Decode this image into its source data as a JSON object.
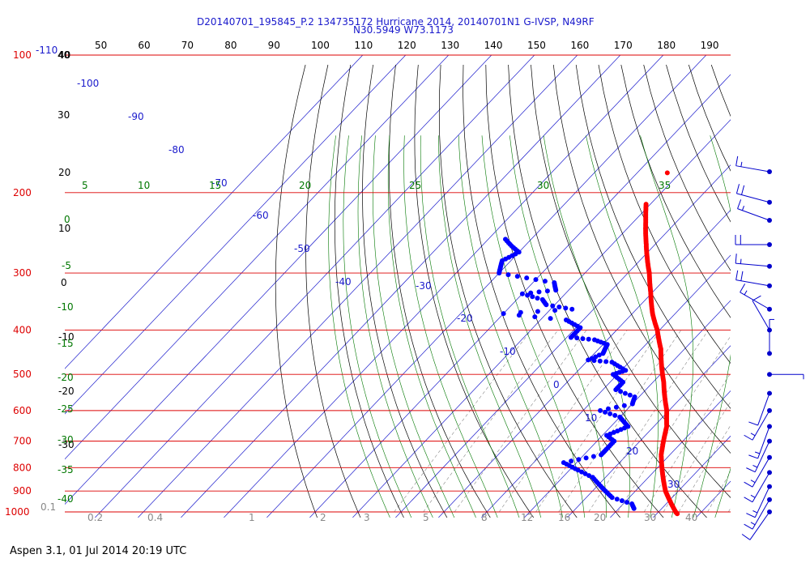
{
  "header": {
    "line1": "D20140701_195845_P.2 134735172 Hurricane 2014, 20140701N1 G-IVSP, N49RF",
    "line2": "N30.5949 W73.1173"
  },
  "footer": {
    "text": "Aspen 3.1, 01 Jul 2014  20:19 UTC"
  },
  "colors": {
    "isobar": "#dd0000",
    "isotherm": "#1a1acc",
    "dry_adiabat": "#000000",
    "moist_adiabat": "#007700",
    "mixing_ratio": "#888888",
    "temperature_trace": "#ff0000",
    "dewpoint_trace": "#0000ff",
    "wind_barb": "#0000cc"
  },
  "chart_data": {
    "type": "skew-t",
    "top_axis_ticks": [
      "40",
      "50",
      "60",
      "70",
      "80",
      "90",
      "100",
      "110",
      "120",
      "130",
      "140",
      "150",
      "160",
      "170",
      "180",
      "190"
    ],
    "pressure_levels": [
      {
        "p": 100,
        "label": "100"
      },
      {
        "p": 200,
        "label": "200"
      },
      {
        "p": 300,
        "label": "300"
      },
      {
        "p": 400,
        "label": "400"
      },
      {
        "p": 500,
        "label": "500"
      },
      {
        "p": 600,
        "label": "600"
      },
      {
        "p": 700,
        "label": "700"
      },
      {
        "p": 800,
        "label": "800"
      },
      {
        "p": 900,
        "label": "900"
      },
      {
        "p": 1000,
        "label": "1000"
      }
    ],
    "isotherm_labels": [
      "-110",
      "-100",
      "-90",
      "-80",
      "-70",
      "-60",
      "-50",
      "-40",
      "-30",
      "-20",
      "-10",
      "0",
      "10",
      "20",
      "30"
    ],
    "dry_adiabat_labels": [
      "40",
      "30",
      "20",
      "10",
      "0",
      "-10",
      "-20",
      "-30"
    ],
    "moist_adiabat_labels": [
      "5",
      "10",
      "15",
      "20",
      "25",
      "30",
      "35",
      "0",
      "-5",
      "-10",
      "-15",
      "-20",
      "-25",
      "-30",
      "-35",
      "-40"
    ],
    "mixing_ratio_labels": [
      "0.1",
      "0.2",
      "0.4",
      "1",
      "2",
      "3",
      "5",
      "8",
      "12",
      "16",
      "20",
      "30",
      "40"
    ],
    "temperature": [
      {
        "p": 212,
        "t": -51
      },
      {
        "p": 230,
        "t": -47.5
      },
      {
        "p": 260,
        "t": -42
      },
      {
        "p": 300,
        "t": -35
      },
      {
        "p": 330,
        "t": -30.5
      },
      {
        "p": 370,
        "t": -25
      },
      {
        "p": 400,
        "t": -20.5
      },
      {
        "p": 440,
        "t": -15.5
      },
      {
        "p": 480,
        "t": -11.5
      },
      {
        "p": 520,
        "t": -7.5
      },
      {
        "p": 560,
        "t": -4
      },
      {
        "p": 600,
        "t": -0.5
      },
      {
        "p": 650,
        "t": 3
      },
      {
        "p": 700,
        "t": 5.5
      },
      {
        "p": 750,
        "t": 8
      },
      {
        "p": 800,
        "t": 11
      },
      {
        "p": 850,
        "t": 14
      },
      {
        "p": 900,
        "t": 17
      },
      {
        "p": 950,
        "t": 20.5
      },
      {
        "p": 1000,
        "t": 24
      },
      {
        "p": 1012,
        "t": 25
      }
    ],
    "temperature_isolated": [
      {
        "p": 181,
        "t": -53
      }
    ],
    "dewpoint": [
      {
        "p": 253,
        "t": -76
      },
      {
        "p": 262,
        "t": -73
      },
      {
        "p": 270,
        "t": -70
      },
      {
        "p": 282,
        "t": -72
      },
      {
        "p": 300,
        "t": -70
      },
      {
        "p": 315,
        "t": -55
      },
      {
        "p": 327,
        "t": -53
      },
      {
        "p": 333,
        "t": -60
      },
      {
        "p": 343,
        "t": -54
      },
      {
        "p": 352,
        "t": -52
      },
      {
        "p": 360,
        "t": -45
      },
      {
        "p": 368,
        "t": -60
      },
      {
        "p": 380,
        "t": -44
      },
      {
        "p": 395,
        "t": -39
      },
      {
        "p": 415,
        "t": -39
      },
      {
        "p": 420,
        "t": -33
      },
      {
        "p": 430,
        "t": -29
      },
      {
        "p": 450,
        "t": -28
      },
      {
        "p": 465,
        "t": -30
      },
      {
        "p": 470,
        "t": -24
      },
      {
        "p": 490,
        "t": -19
      },
      {
        "p": 500,
        "t": -21
      },
      {
        "p": 520,
        "t": -17
      },
      {
        "p": 540,
        "t": -17
      },
      {
        "p": 560,
        "t": -11
      },
      {
        "p": 580,
        "t": -10
      },
      {
        "p": 600,
        "t": -16
      },
      {
        "p": 620,
        "t": -10
      },
      {
        "p": 650,
        "t": -6
      },
      {
        "p": 680,
        "t": -9
      },
      {
        "p": 700,
        "t": -6
      },
      {
        "p": 730,
        "t": -6
      },
      {
        "p": 750,
        "t": -6
      },
      {
        "p": 780,
        "t": -13
      },
      {
        "p": 810,
        "t": -8
      },
      {
        "p": 840,
        "t": -3
      },
      {
        "p": 870,
        "t": 0
      },
      {
        "p": 900,
        "t": 3
      },
      {
        "p": 930,
        "t": 6
      },
      {
        "p": 960,
        "t": 12
      },
      {
        "p": 990,
        "t": 14
      }
    ],
    "wind_barbs": [
      {
        "p": 180,
        "dir": 280,
        "spd": 15
      },
      {
        "p": 210,
        "dir": 285,
        "spd": 20
      },
      {
        "p": 230,
        "dir": 290,
        "spd": 15
      },
      {
        "p": 260,
        "dir": 270,
        "spd": 20
      },
      {
        "p": 290,
        "dir": 275,
        "spd": 15
      },
      {
        "p": 320,
        "dir": 280,
        "spd": 20
      },
      {
        "p": 360,
        "dir": 300,
        "spd": 15
      },
      {
        "p": 400,
        "dir": 330,
        "spd": 10
      },
      {
        "p": 450,
        "dir": 0,
        "spd": 5
      },
      {
        "p": 500,
        "dir": 90,
        "spd": 5
      },
      {
        "p": 550,
        "dir": 200,
        "spd": 10
      },
      {
        "p": 600,
        "dir": 210,
        "spd": 15
      },
      {
        "p": 650,
        "dir": 200,
        "spd": 15
      },
      {
        "p": 700,
        "dir": 205,
        "spd": 15
      },
      {
        "p": 760,
        "dir": 210,
        "spd": 15
      },
      {
        "p": 820,
        "dir": 210,
        "spd": 15
      },
      {
        "p": 880,
        "dir": 205,
        "spd": 15
      },
      {
        "p": 940,
        "dir": 210,
        "spd": 15
      },
      {
        "p": 1000,
        "dir": 215,
        "spd": 10
      }
    ]
  }
}
